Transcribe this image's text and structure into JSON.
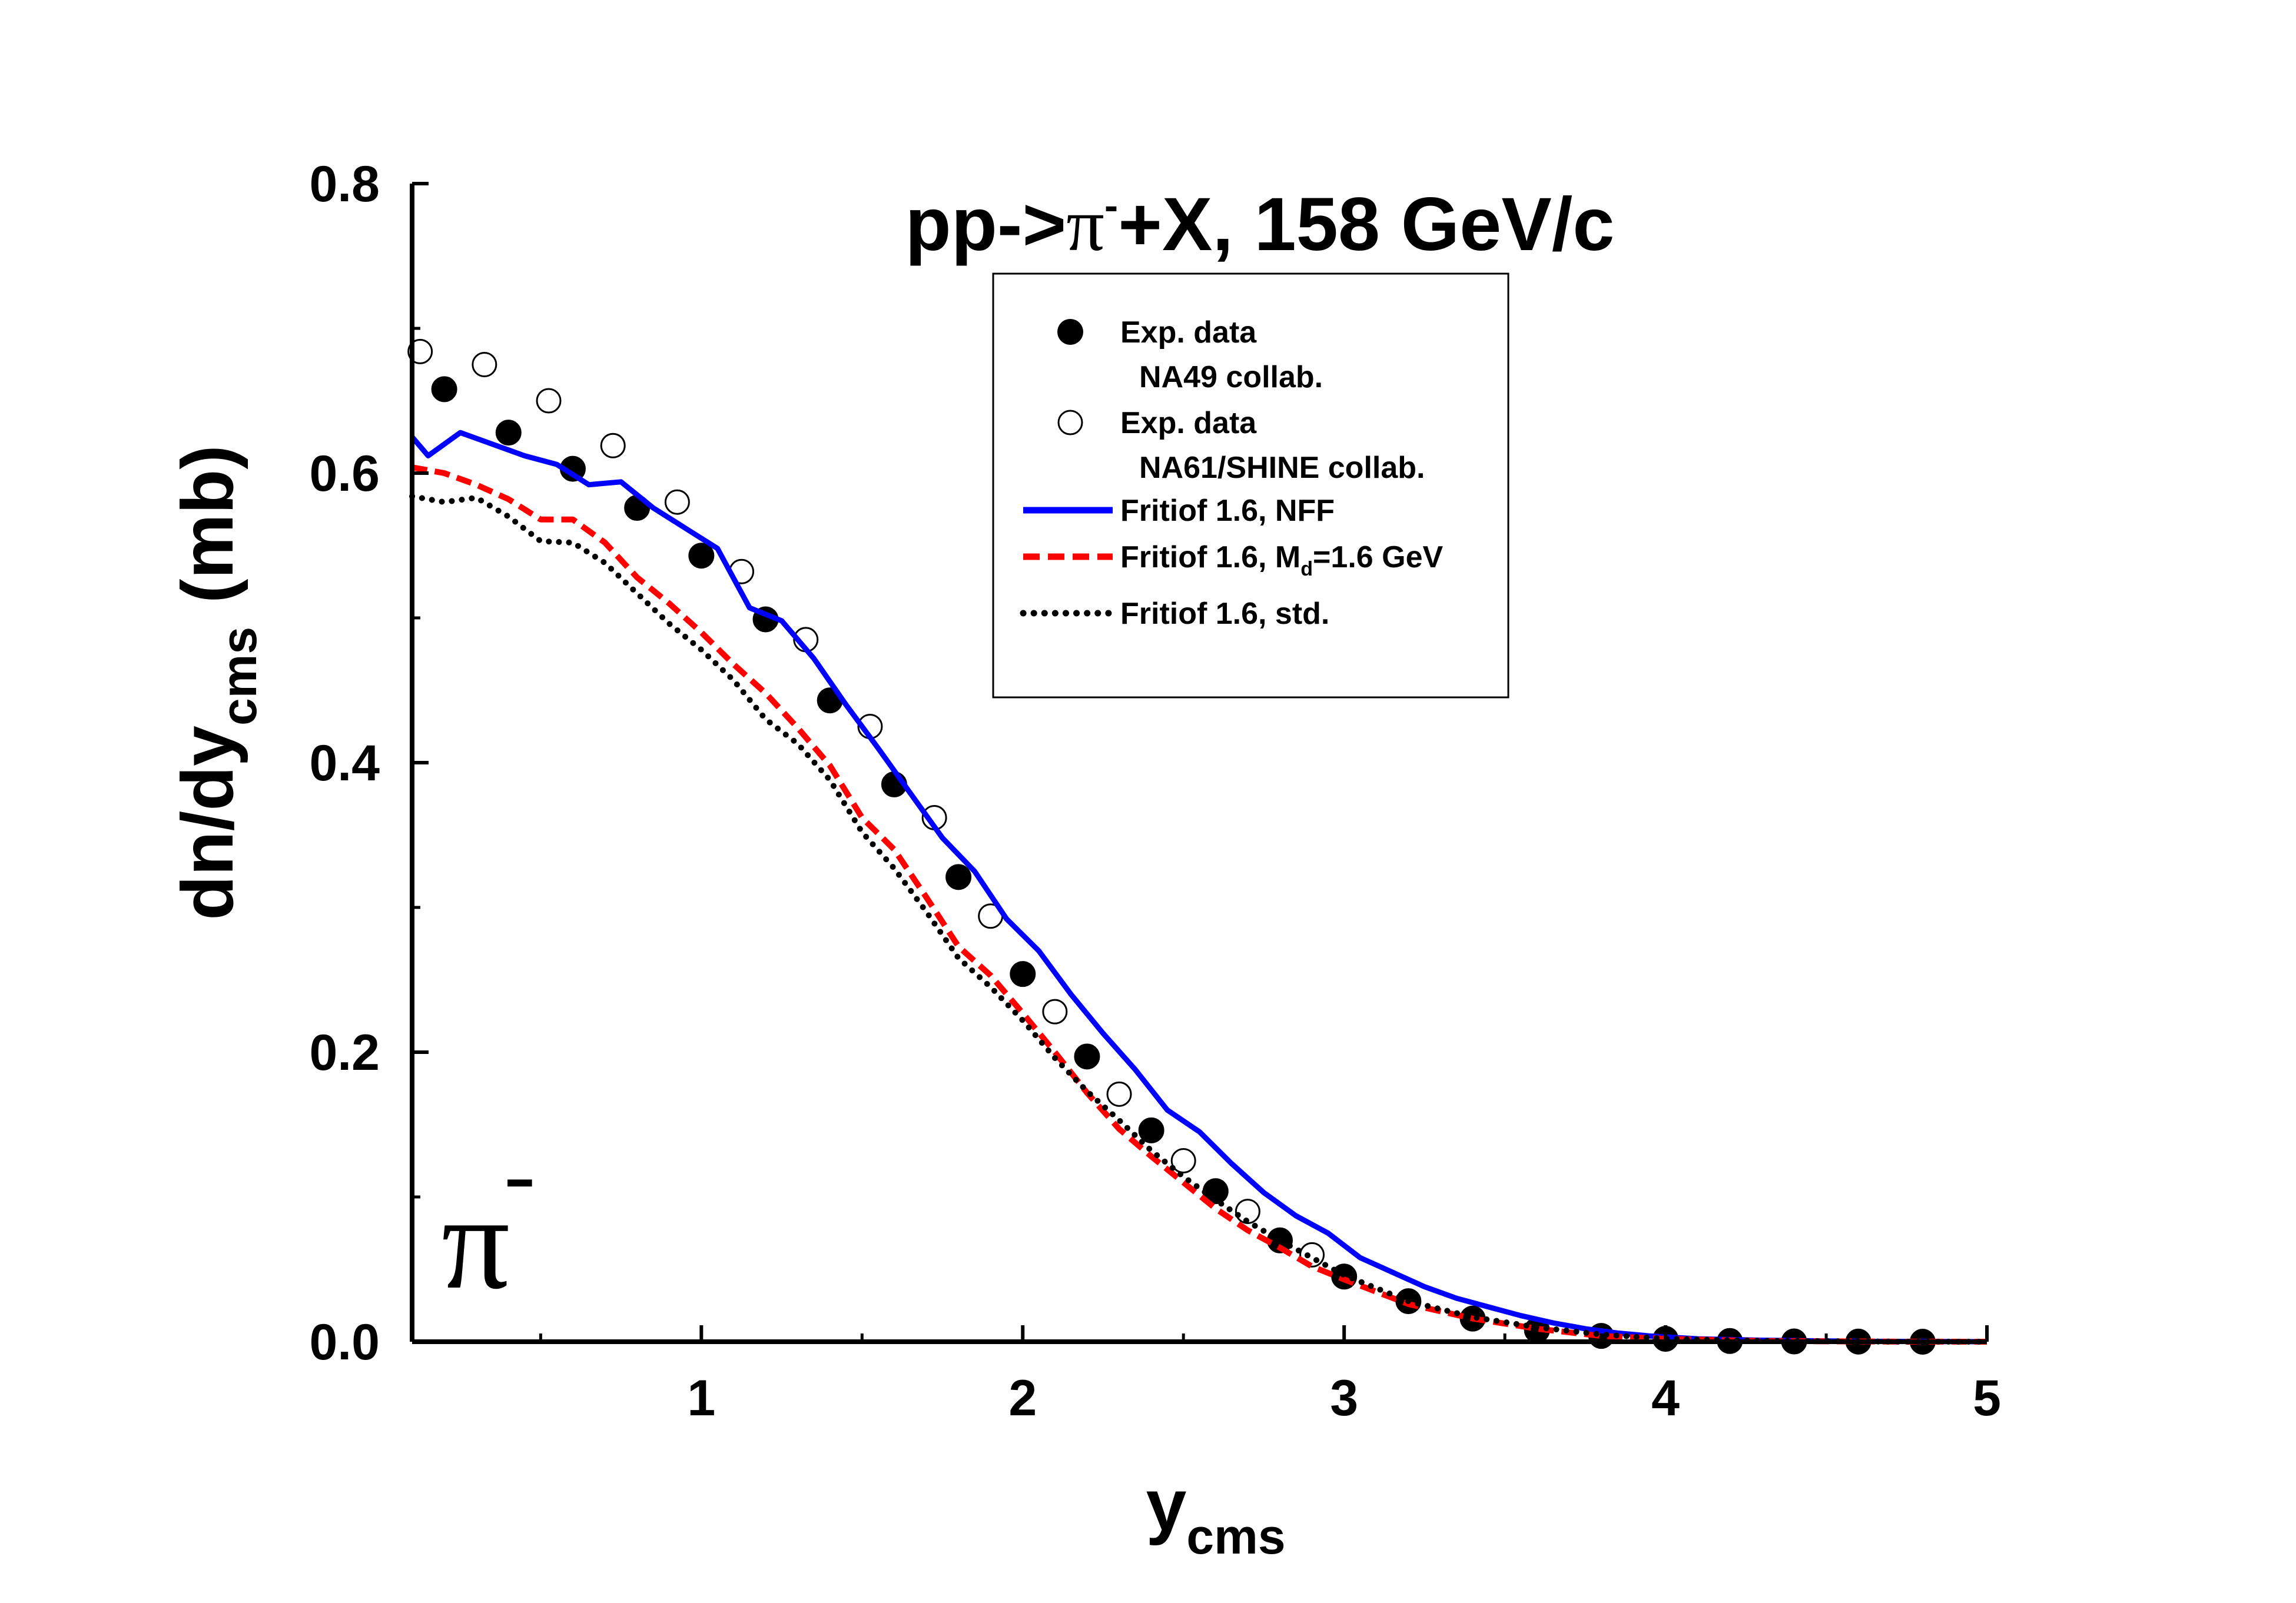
{
  "chart_data": {
    "type": "scatter",
    "title": {
      "prefix": "pp->",
      "particle": "π",
      "superscript": "-",
      "suffix": "+X, 158 GeV/c"
    },
    "xlabel": {
      "main": "y",
      "sub": "cms"
    },
    "ylabel": {
      "main": "dn/dy",
      "sub": "cms",
      "unit": "(mb)"
    },
    "xlim": [
      0.1,
      5
    ],
    "ylim": [
      0,
      0.8
    ],
    "x_ticks": [
      1,
      2,
      3,
      4,
      5
    ],
    "x_tick_labels": [
      "1",
      "2",
      "3",
      "4",
      "5"
    ],
    "y_ticks": [
      0,
      0.2,
      0.4,
      0.6,
      0.8
    ],
    "y_tick_labels": [
      "0.0",
      "0.2",
      "0.4",
      "0.6",
      "0.8"
    ],
    "annotation": {
      "symbol": "π",
      "superscript": "-"
    },
    "legend": {
      "position": "top-right",
      "entries": [
        {
          "label": "Exp. data",
          "sub": "NA49 collab."
        },
        {
          "label": "Exp. data",
          "sub": "NA61/SHINE collab."
        },
        {
          "label": "Fritiof 1.6, NFF"
        },
        {
          "label_pre": "Fritiof 1.6, M",
          "label_sub": "d",
          "label_post": "=1.6 GeV"
        },
        {
          "label": "Fritiof 1.6, std."
        }
      ]
    },
    "series": [
      {
        "name": "Exp. data NA49 collab.",
        "style": "filled-circle",
        "color": "#000000",
        "x": [
          0.2,
          0.4,
          0.6,
          0.8,
          1.0,
          1.2,
          1.4,
          1.6,
          1.8,
          2.0,
          2.2,
          2.4,
          2.6,
          2.8,
          3.0,
          3.2,
          3.4,
          3.6,
          3.8,
          4.0,
          4.2,
          4.4,
          4.6,
          4.8
        ],
        "y": [
          0.658,
          0.628,
          0.603,
          0.576,
          0.543,
          0.499,
          0.443,
          0.385,
          0.321,
          0.254,
          0.197,
          0.146,
          0.104,
          0.07,
          0.045,
          0.028,
          0.016,
          0.008,
          0.004,
          0.002,
          0.0005,
          0.0002,
          0.0001,
          0.0
        ]
      },
      {
        "name": "Exp. data NA61/SHINE collab.",
        "style": "open-circle",
        "color": "#000000",
        "x": [
          0.125,
          0.325,
          0.525,
          0.725,
          0.925,
          1.125,
          1.325,
          1.525,
          1.725,
          1.9,
          2.1,
          2.3,
          2.5,
          2.7,
          2.9
        ],
        "y": [
          0.684,
          0.675,
          0.65,
          0.619,
          0.58,
          0.532,
          0.485,
          0.425,
          0.362,
          0.294,
          0.228,
          0.171,
          0.125,
          0.09,
          0.06
        ]
      },
      {
        "name": "Fritiof 1.6, NFF",
        "style": "solid",
        "color": "#0000ff",
        "x": [
          0.1,
          0.15,
          0.25,
          0.35,
          0.45,
          0.55,
          0.65,
          0.75,
          0.85,
          0.95,
          1.05,
          1.15,
          1.25,
          1.35,
          1.45,
          1.55,
          1.65,
          1.75,
          1.85,
          1.95,
          2.05,
          2.15,
          2.25,
          2.35,
          2.45,
          2.55,
          2.65,
          2.75,
          2.85,
          2.95,
          3.05,
          3.15,
          3.25,
          3.35,
          3.45,
          3.55,
          3.65,
          3.75,
          3.85,
          3.95,
          4.1,
          4.3,
          4.6,
          5.0
        ],
        "y": [
          0.625,
          0.612,
          0.628,
          0.62,
          0.612,
          0.606,
          0.592,
          0.594,
          0.576,
          0.562,
          0.548,
          0.507,
          0.498,
          0.472,
          0.44,
          0.41,
          0.379,
          0.348,
          0.325,
          0.292,
          0.27,
          0.24,
          0.213,
          0.188,
          0.16,
          0.145,
          0.123,
          0.103,
          0.087,
          0.075,
          0.058,
          0.048,
          0.038,
          0.03,
          0.024,
          0.018,
          0.013,
          0.009,
          0.006,
          0.004,
          0.002,
          0.001,
          0.0003,
          0.0
        ]
      },
      {
        "name": "Fritiof 1.6, Md=1.6 GeV",
        "style": "dashed",
        "color": "#ff0000",
        "x": [
          0.1,
          0.2,
          0.3,
          0.4,
          0.5,
          0.6,
          0.7,
          0.8,
          0.9,
          1.0,
          1.1,
          1.2,
          1.3,
          1.4,
          1.5,
          1.6,
          1.7,
          1.8,
          1.9,
          2.0,
          2.1,
          2.2,
          2.3,
          2.4,
          2.5,
          2.6,
          2.7,
          2.8,
          2.9,
          3.0,
          3.2,
          3.4,
          3.6,
          3.8,
          4.0,
          4.3,
          4.7,
          5.0
        ],
        "y": [
          0.604,
          0.6,
          0.592,
          0.582,
          0.568,
          0.568,
          0.552,
          0.528,
          0.51,
          0.49,
          0.468,
          0.448,
          0.424,
          0.398,
          0.362,
          0.34,
          0.307,
          0.273,
          0.253,
          0.227,
          0.2,
          0.172,
          0.147,
          0.128,
          0.11,
          0.092,
          0.077,
          0.065,
          0.052,
          0.043,
          0.026,
          0.016,
          0.009,
          0.004,
          0.002,
          0.0005,
          0.0001,
          0.0
        ]
      },
      {
        "name": "Fritiof 1.6, std.",
        "style": "dotted",
        "color": "#000000",
        "x": [
          0.1,
          0.2,
          0.3,
          0.4,
          0.5,
          0.6,
          0.7,
          0.8,
          0.9,
          1.0,
          1.1,
          1.2,
          1.3,
          1.4,
          1.5,
          1.6,
          1.7,
          1.8,
          1.9,
          2.0,
          2.1,
          2.2,
          2.3,
          2.4,
          2.5,
          2.6,
          2.7,
          2.8,
          2.9,
          3.0,
          3.2,
          3.4,
          3.6,
          3.8,
          4.0,
          4.3,
          4.7,
          5.0
        ],
        "y": [
          0.584,
          0.58,
          0.583,
          0.57,
          0.553,
          0.552,
          0.538,
          0.517,
          0.496,
          0.478,
          0.457,
          0.43,
          0.413,
          0.388,
          0.352,
          0.327,
          0.297,
          0.265,
          0.245,
          0.222,
          0.196,
          0.173,
          0.153,
          0.132,
          0.114,
          0.098,
          0.083,
          0.07,
          0.058,
          0.046,
          0.028,
          0.017,
          0.01,
          0.005,
          0.002,
          0.0006,
          0.0001,
          0.0
        ]
      }
    ]
  }
}
